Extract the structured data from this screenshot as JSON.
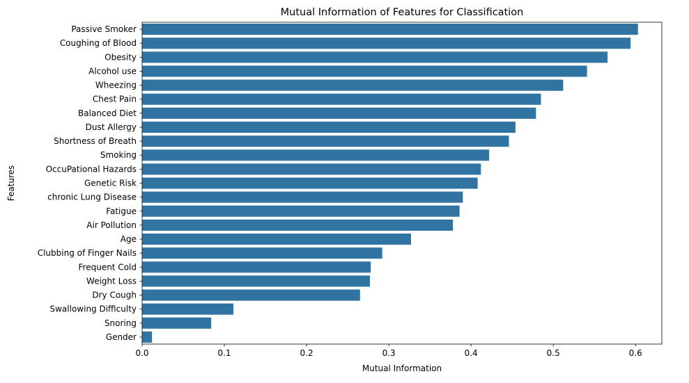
{
  "chart_data": {
    "type": "bar",
    "orientation": "horizontal",
    "title": "Mutual Information of Features for Classification",
    "xlabel": "Mutual Information",
    "ylabel": "Features",
    "xlim": [
      0,
      0.632
    ],
    "xticks": [
      0.0,
      0.1,
      0.2,
      0.3,
      0.4,
      0.5,
      0.6
    ],
    "xtick_labels": [
      "0.0",
      "0.1",
      "0.2",
      "0.3",
      "0.4",
      "0.5",
      "0.6"
    ],
    "grid": false,
    "bar_color": "#3274a1",
    "categories": [
      "Passive Smoker",
      "Coughing of Blood",
      "Obesity",
      "Alcohol use",
      "Wheezing",
      "Chest Pain",
      "Balanced Diet",
      "Dust Allergy",
      "Shortness of Breath",
      "Smoking",
      "OccuPational Hazards",
      "Genetic Risk",
      "chronic Lung Disease",
      "Fatigue",
      "Air Pollution",
      "Age",
      "Clubbing of Finger Nails",
      "Frequent Cold",
      "Weight Loss",
      "Dry Cough",
      "Swallowing Difficulty",
      "Snoring",
      "Gender"
    ],
    "values": [
      0.603,
      0.594,
      0.566,
      0.541,
      0.512,
      0.485,
      0.479,
      0.454,
      0.446,
      0.422,
      0.412,
      0.408,
      0.39,
      0.386,
      0.378,
      0.327,
      0.292,
      0.278,
      0.277,
      0.265,
      0.111,
      0.084,
      0.012
    ]
  }
}
